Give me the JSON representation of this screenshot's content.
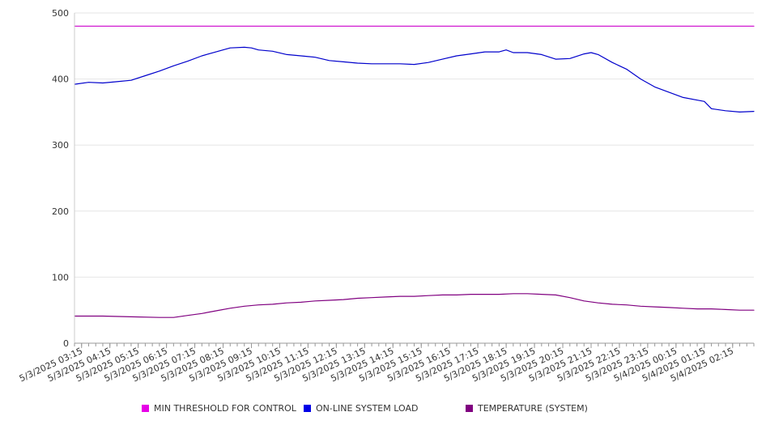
{
  "chart_data": {
    "type": "line",
    "title": "",
    "xlabel": "",
    "ylabel": "",
    "ylim": [
      0,
      500
    ],
    "yticks": [
      0,
      100,
      200,
      300,
      400,
      500
    ],
    "grid": true,
    "legend_position": "bottom",
    "x_range_hours": [
      3.0,
      27.0
    ],
    "xtick_labels": [
      "5/3/2025 03:15",
      "5/3/2025 04:15",
      "5/3/2025 05:15",
      "5/3/2025 06:15",
      "5/3/2025 07:15",
      "5/3/2025 08:15",
      "5/3/2025 09:15",
      "5/3/2025 10:15",
      "5/3/2025 11:15",
      "5/3/2025 12:15",
      "5/3/2025 13:15",
      "5/3/2025 14:15",
      "5/3/2025 15:15",
      "5/3/2025 16:15",
      "5/3/2025 17:15",
      "5/3/2025 18:15",
      "5/3/2025 19:15",
      "5/3/2025 20:15",
      "5/3/2025 21:15",
      "5/3/2025 22:15",
      "5/3/2025 23:15",
      "5/4/2025 00:15",
      "5/4/2025 01:15",
      "5/4/2025 02:15"
    ],
    "series": [
      {
        "name": "MIN THRESHOLD FOR CONTROL",
        "color": "#cc00cc",
        "x": [
          3.0,
          27.0
        ],
        "y": [
          480,
          480
        ]
      },
      {
        "name": "ON-LINE SYSTEM LOAD",
        "color": "#0000cc",
        "x": [
          3.0,
          3.5,
          4.0,
          4.5,
          5.0,
          5.5,
          6.0,
          6.5,
          7.0,
          7.5,
          8.0,
          8.5,
          9.0,
          9.25,
          9.5,
          10.0,
          10.5,
          11.0,
          11.5,
          12.0,
          12.5,
          13.0,
          13.5,
          14.0,
          14.5,
          15.0,
          15.5,
          16.0,
          16.5,
          17.0,
          17.5,
          18.0,
          18.25,
          18.5,
          19.0,
          19.5,
          20.0,
          20.5,
          21.0,
          21.25,
          21.5,
          22.0,
          22.5,
          23.0,
          23.5,
          24.0,
          24.5,
          25.0,
          25.25,
          25.5,
          26.0,
          26.5,
          27.0
        ],
        "y": [
          392,
          395,
          394,
          396,
          398,
          405,
          412,
          420,
          427,
          435,
          441,
          447,
          448,
          447,
          444,
          442,
          437,
          435,
          433,
          428,
          426,
          424,
          423,
          423,
          423,
          422,
          425,
          430,
          435,
          438,
          441,
          441,
          444,
          440,
          440,
          437,
          430,
          431,
          438,
          440,
          437,
          425,
          415,
          400,
          388,
          380,
          372,
          368,
          366,
          355,
          352,
          350,
          351
        ]
      },
      {
        "name": "TEMPERATURE (SYSTEM)",
        "color": "#800080",
        "x": [
          3.0,
          4.0,
          5.0,
          6.0,
          6.5,
          7.0,
          7.5,
          8.0,
          8.5,
          9.0,
          9.5,
          10.0,
          10.5,
          11.0,
          11.5,
          12.0,
          12.5,
          13.0,
          13.5,
          14.0,
          14.5,
          15.0,
          15.5,
          16.0,
          16.5,
          17.0,
          17.5,
          18.0,
          18.5,
          19.0,
          19.5,
          20.0,
          20.5,
          21.0,
          21.5,
          22.0,
          22.5,
          23.0,
          23.5,
          24.0,
          24.5,
          25.0,
          25.5,
          26.0,
          26.5,
          27.0
        ],
        "y": [
          41,
          41,
          40,
          39,
          39,
          42,
          45,
          49,
          53,
          56,
          58,
          59,
          61,
          62,
          64,
          65,
          66,
          68,
          69,
          70,
          71,
          71,
          72,
          73,
          73,
          74,
          74,
          74,
          75,
          75,
          74,
          73,
          69,
          64,
          61,
          59,
          58,
          56,
          55,
          54,
          53,
          52,
          52,
          51,
          50,
          50
        ]
      }
    ]
  }
}
